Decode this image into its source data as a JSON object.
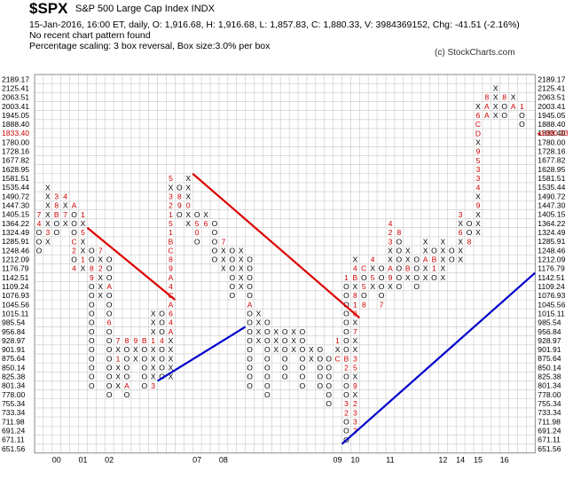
{
  "header": {
    "symbol": "$SPX",
    "name": "S&P 500 Large Cap Index  INDX",
    "line1": "15-Jan-2016, 16:00 ET, daily, O: 1,916.68, H: 1,916.68, L: 1,857.83, C: 1,880.33, V: 3984369152, Chg: -41.51 (-2.16%)",
    "line2": "No recent chart pattern found",
    "line3": "Percentage scaling: 3 box reversal, Box size:3.0% per box",
    "copyright": "(c) StockCharts.com"
  },
  "chart_data": {
    "type": "point-and-figure",
    "box_size_percent": 3.0,
    "reversal_boxes": 3,
    "price_levels": [
      "2189.17",
      "2125.41",
      "2063.51",
      "2003.41",
      "1945.05",
      "1888.40",
      "1833.40",
      "1780.00",
      "1728.16",
      "1677.82",
      "1628.95",
      "1581.51",
      "1535.44",
      "1490.72",
      "1447.30",
      "1405.15",
      "1364.22",
      "1324.49",
      "1285.91",
      "1248.46",
      "1212.09",
      "1176.79",
      "1142.51",
      "1109.24",
      "1076.93",
      "1045.56",
      "1015.11",
      "985.54",
      "956.84",
      "928.97",
      "901.91",
      "875.64",
      "850.14",
      "825.38",
      "801.34",
      "778.00",
      "755.34",
      "733.34",
      "711.98",
      "691.24",
      "671.11",
      "651.56"
    ],
    "left_axis_highlight": "1833.40",
    "last_price_label": "1880.33",
    "x_tick_labels": [
      {
        "label": "00",
        "col": 2
      },
      {
        "label": "01",
        "col": 5
      },
      {
        "label": "02",
        "col": 8
      },
      {
        "label": "07",
        "col": 18
      },
      {
        "label": "08",
        "col": 21
      },
      {
        "label": "09",
        "col": 34
      },
      {
        "label": "10",
        "col": 36
      },
      {
        "label": "11",
        "col": 40
      },
      {
        "label": "12",
        "col": 46
      },
      {
        "label": "14",
        "col": 48
      },
      {
        "label": "15",
        "col": 50
      },
      {
        "label": "16",
        "col": 53
      }
    ],
    "columns": [
      {
        "type": "O",
        "top": "1405.15",
        "bottom": "1248.46",
        "marks": {
          "1405.15": "7",
          "1364.22": "4"
        }
      },
      {
        "type": "X",
        "top": "1535.44",
        "bottom": "1285.91",
        "marks": {
          "1324.49": "3",
          "1248.46": "A"
        }
      },
      {
        "type": "O",
        "top": "1490.72",
        "bottom": "1324.49",
        "marks": {
          "1490.72": "3",
          "1447.30": "8",
          "1405.15": "B"
        }
      },
      {
        "type": "X",
        "top": "1490.72",
        "bottom": "1364.22",
        "marks": {
          "1490.72": "4",
          "1405.15": "7"
        }
      },
      {
        "type": "O",
        "top": "1447.30",
        "bottom": "1176.79",
        "marks": {
          "1447.30": "A",
          "1285.91": "C",
          "1248.46": "2",
          "1176.79": "4"
        }
      },
      {
        "type": "X",
        "top": "1405.15",
        "bottom": "1176.79",
        "marks": {
          "1405.15": "1",
          "1324.49": "5",
          "1212.09": "1"
        }
      },
      {
        "type": "O",
        "top": "1248.46",
        "bottom": "801.34",
        "marks": {
          "1176.79": "8",
          "1142.51": "9"
        }
      },
      {
        "type": "X",
        "top": "1248.46",
        "bottom": "1076.93",
        "marks": {
          "1248.46": "7",
          "1176.79": "2"
        }
      },
      {
        "type": "O",
        "top": "1212.09",
        "bottom": "778.00",
        "marks": {
          "1109.24": "A",
          "985.54": "6"
        }
      },
      {
        "type": "X",
        "top": "928.97",
        "bottom": "801.34",
        "marks": {
          "928.97": "7",
          "875.64": "1"
        }
      },
      {
        "type": "O",
        "top": "928.97",
        "bottom": "778.00",
        "marks": {
          "928.97": "8",
          "801.34": "A"
        }
      },
      {
        "type": "X",
        "top": "928.97",
        "bottom": "875.64",
        "marks": {
          "928.97": "9"
        }
      },
      {
        "type": "O",
        "top": "928.97",
        "bottom": "801.34",
        "marks": {
          "928.97": "B"
        }
      },
      {
        "type": "X",
        "top": "1015.11",
        "bottom": "801.34",
        "marks": {
          "928.97": "1",
          "801.34": "3"
        }
      },
      {
        "type": "O",
        "top": "1015.11",
        "bottom": "825.38",
        "marks": {
          "928.97": "4"
        }
      },
      {
        "type": "X",
        "top": "1581.51",
        "bottom": "825.38",
        "marks": {
          "1581.51": "5",
          "1490.72": "3",
          "1447.30": "2",
          "1405.15": "1",
          "1364.22": "5",
          "1324.49": "1",
          "1285.91": "B",
          "1248.46": "C",
          "1212.09": "8",
          "1176.79": "9",
          "1142.51": "A",
          "1109.24": "4",
          "1076.93": "C",
          "1045.56": "A",
          "1015.11": "6",
          "985.54": "4",
          "956.84": "A"
        }
      },
      {
        "type": "O",
        "top": "1535.44",
        "bottom": "1405.15",
        "marks": {
          "1490.72": "8",
          "1447.30": "9"
        }
      },
      {
        "type": "X",
        "top": "1581.51",
        "bottom": "1364.22",
        "marks": {
          "1490.72": "X",
          "1447.30": "0"
        }
      },
      {
        "type": "O",
        "top": "1405.15",
        "bottom": "1285.91",
        "marks": {
          "1364.22": "5",
          "1324.49": "0"
        }
      },
      {
        "type": "X",
        "top": "1405.15",
        "bottom": "1364.22",
        "marks": {
          "1364.22": "6"
        }
      },
      {
        "type": "O",
        "top": "1364.22",
        "bottom": "1212.09",
        "marks": {}
      },
      {
        "type": "X",
        "top": "1285.91",
        "bottom": "1176.79",
        "marks": {
          "1285.91": "7"
        }
      },
      {
        "type": "O",
        "top": "1248.46",
        "bottom": "1076.93",
        "marks": {
          "1248.46": "X"
        }
      },
      {
        "type": "X",
        "top": "1248.46",
        "bottom": "1109.24",
        "marks": {}
      },
      {
        "type": "O",
        "top": "1212.09",
        "bottom": "801.34",
        "marks": {
          "1045.56": "A"
        }
      },
      {
        "type": "X",
        "top": "1015.11",
        "bottom": "928.97",
        "marks": {}
      },
      {
        "type": "O",
        "top": "985.54",
        "bottom": "778.00",
        "marks": {}
      },
      {
        "type": "X",
        "top": "956.84",
        "bottom": "901.91",
        "marks": {}
      },
      {
        "type": "O",
        "top": "956.84",
        "bottom": "825.38",
        "marks": {}
      },
      {
        "type": "X",
        "top": "956.84",
        "bottom": "901.91",
        "marks": {}
      },
      {
        "type": "O",
        "top": "956.84",
        "bottom": "801.34",
        "marks": {}
      },
      {
        "type": "X",
        "top": "901.91",
        "bottom": "875.64",
        "marks": {}
      },
      {
        "type": "O",
        "top": "901.91",
        "bottom": "801.34",
        "marks": {}
      },
      {
        "type": "O",
        "top": "875.64",
        "bottom": "755.34",
        "marks": {}
      },
      {
        "type": "X",
        "top": "928.97",
        "bottom": "875.64",
        "marks": {
          "928.97": "1",
          "875.64": "C"
        }
      },
      {
        "type": "O",
        "top": "1142.51",
        "bottom": "671.11",
        "marks": {
          "1142.51": "1",
          "875.64": "B",
          "850.14": "2",
          "755.34": "3",
          "733.34": "2"
        }
      },
      {
        "type": "X",
        "top": "1212.09",
        "bottom": "691.24",
        "marks": {
          "1176.79": "4",
          "1142.51": "B",
          "1076.93": "8",
          "1045.56": "1",
          "1015.11": "8",
          "956.84": "7",
          "875.64": "3",
          "850.14": "5",
          "801.34": "9",
          "755.34": "2",
          "733.34": "3",
          "711.98": "3",
          "691.24": "2"
        }
      },
      {
        "type": "O",
        "top": "1176.79",
        "bottom": "1045.56",
        "marks": {
          "1176.79": "C",
          "1109.24": "5",
          "1045.56": "8"
        }
      },
      {
        "type": "X",
        "top": "1212.09",
        "bottom": "1109.24",
        "marks": {
          "1212.09": "4",
          "1142.51": "5"
        }
      },
      {
        "type": "O",
        "top": "1176.79",
        "bottom": "1045.56",
        "marks": {
          "1045.56": "7"
        }
      },
      {
        "type": "X",
        "top": "1364.22",
        "bottom": "1109.24",
        "marks": {
          "1364.22": "4",
          "1324.49": "2",
          "1285.91": "3",
          "1176.79": "A",
          "1142.51": "9"
        }
      },
      {
        "type": "O",
        "top": "1324.49",
        "bottom": "1109.24",
        "marks": {
          "1324.49": "8"
        }
      },
      {
        "type": "X",
        "top": "1248.46",
        "bottom": "1142.51",
        "marks": {
          "1176.79": "B"
        }
      },
      {
        "type": "O",
        "top": "1212.09",
        "bottom": "1109.24",
        "marks": {}
      },
      {
        "type": "X",
        "top": "1285.91",
        "bottom": "1142.51",
        "marks": {
          "1212.09": "A",
          "1176.79": "X"
        }
      },
      {
        "type": "O",
        "top": "1248.46",
        "bottom": "1142.51",
        "marks": {
          "1212.09": "B",
          "1176.79": "1"
        }
      },
      {
        "type": "X",
        "top": "1285.91",
        "bottom": "1142.51",
        "marks": {
          "1285.91": "X"
        }
      },
      {
        "type": "O",
        "top": "1248.46",
        "bottom": "1212.09",
        "marks": {}
      },
      {
        "type": "X",
        "top": "1405.15",
        "bottom": "1212.09",
        "marks": {
          "1405.15": "3",
          "1324.49": "6"
        }
      },
      {
        "type": "O",
        "top": "1364.22",
        "bottom": "1285.91",
        "marks": {
          "1285.91": "8"
        }
      },
      {
        "type": "X",
        "top": "2003.41",
        "bottom": "1324.49",
        "marks": {
          "2003.41": "X",
          "1945.05": "6",
          "1888.40": "C",
          "1833.40": "D",
          "1780.00": "X",
          "1728.16": "9",
          "1677.82": "5",
          "1628.95": "3",
          "1581.51": "3",
          "1535.44": "4",
          "1490.72": "X",
          "1447.30": "9",
          "1405.15": "X",
          "1364.22": "X",
          "1324.49": "X"
        }
      },
      {
        "type": "O",
        "top": "2063.51",
        "bottom": "1945.05",
        "marks": {
          "2063.51": "8",
          "2003.41": "A",
          "1945.05": "A"
        }
      },
      {
        "type": "X",
        "top": "2125.41",
        "bottom": "1945.05",
        "marks": {
          "2125.41": "X",
          "2063.51": "X",
          "2003.41": "X"
        }
      },
      {
        "type": "O",
        "top": "2063.51",
        "bottom": "1945.05",
        "marks": {
          "2063.51": "8",
          "2003.41": "X"
        }
      },
      {
        "type": "X",
        "top": "2063.51",
        "bottom": "2003.41",
        "marks": {
          "2063.51": "X",
          "2003.41": "A"
        }
      },
      {
        "type": "O",
        "top": "2003.41",
        "bottom": "1888.40",
        "marks": {
          "2003.41": "1"
        }
      }
    ],
    "trendlines": [
      {
        "kind": "resistance",
        "color": "#dd0000",
        "start": {
          "col": 6,
          "level": "1324.49"
        },
        "end": {
          "col": 15,
          "level": "1076.93"
        }
      },
      {
        "kind": "resistance",
        "color": "#dd0000",
        "start": {
          "col": 18,
          "level": "1581.51"
        },
        "end": {
          "col": 36,
          "level": "1015.11"
        }
      },
      {
        "kind": "support",
        "color": "#0000cc",
        "start": {
          "col": 14,
          "level": "801.34"
        },
        "end": {
          "col": 23,
          "level": "985.54"
        }
      },
      {
        "kind": "support",
        "color": "#0000cc",
        "start": {
          "col": 35,
          "level": "651.56"
        },
        "end": {
          "col": 56,
          "level": "1176.79"
        }
      }
    ],
    "colors": {
      "x_mark": "#000000",
      "o_mark": "#000000",
      "month_mark": "#cc0000",
      "grid": "#c8c8c8",
      "axis_highlight": "#cc0000",
      "red_line": "#dd0000",
      "blue_line": "#0000cc"
    }
  }
}
